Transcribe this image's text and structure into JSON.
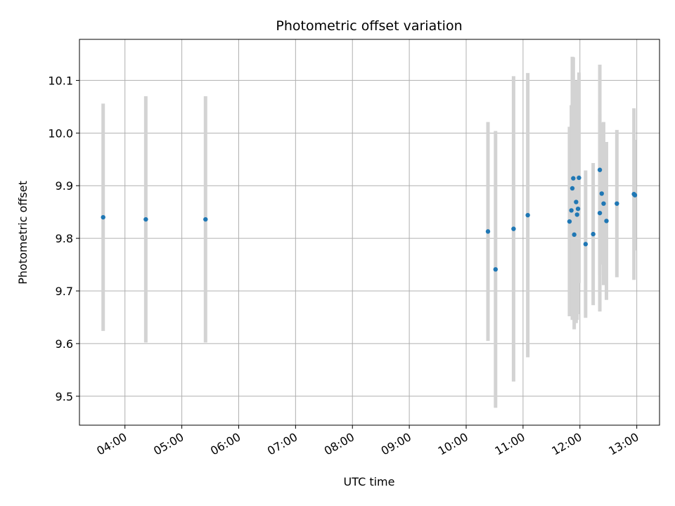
{
  "chart_data": {
    "type": "scatter",
    "title": "Photometric offset variation",
    "xlabel": "UTC time",
    "ylabel": "Photometric offset",
    "x_tick_labels": [
      "04:00",
      "05:00",
      "06:00",
      "07:00",
      "08:00",
      "09:00",
      "10:00",
      "11:00",
      "12:00",
      "13:00"
    ],
    "x_ticks": [
      "04:00",
      "05:00",
      "06:00",
      "07:00",
      "08:00",
      "09:00",
      "10:00",
      "11:00",
      "12:00",
      "13:00"
    ],
    "xlim": [
      "03:12",
      "13:24"
    ],
    "y_ticks": [
      9.5,
      9.6,
      9.7,
      9.8,
      9.9,
      10.0,
      10.1
    ],
    "ylim": [
      9.445,
      10.178
    ],
    "grid": true,
    "marker_color": "#1f77b4",
    "errorbar_color": "#d3d3d3",
    "points": [
      {
        "x": "03:37",
        "y": 9.84,
        "err": 0.216
      },
      {
        "x": "04:22",
        "y": 9.836,
        "err": 0.234
      },
      {
        "x": "05:25",
        "y": 9.836,
        "err": 0.234
      },
      {
        "x": "10:23",
        "y": 9.813,
        "err": 0.208
      },
      {
        "x": "10:31",
        "y": 9.741,
        "err": 0.263
      },
      {
        "x": "10:50",
        "y": 9.818,
        "err": 0.29
      },
      {
        "x": "11:05",
        "y": 9.844,
        "err": 0.27
      },
      {
        "x": "11:49",
        "y": 9.832,
        "err": 0.18
      },
      {
        "x": "11:51",
        "y": 9.853,
        "err": 0.2
      },
      {
        "x": "11:52",
        "y": 9.895,
        "err": 0.25
      },
      {
        "x": "11:53",
        "y": 9.914,
        "err": 0.23
      },
      {
        "x": "11:54",
        "y": 9.807,
        "err": 0.18
      },
      {
        "x": "11:56",
        "y": 9.869,
        "err": 0.23
      },
      {
        "x": "11:57",
        "y": 9.845,
        "err": 0.2
      },
      {
        "x": "11:58",
        "y": 9.856,
        "err": 0.2
      },
      {
        "x": "11:59",
        "y": 9.915,
        "err": 0.2
      },
      {
        "x": "12:06",
        "y": 9.789,
        "err": 0.14
      },
      {
        "x": "12:14",
        "y": 9.808,
        "err": 0.135
      },
      {
        "x": "12:21",
        "y": 9.93,
        "err": 0.2
      },
      {
        "x": "12:21",
        "y": 9.848,
        "err": 0.187
      },
      {
        "x": "12:23",
        "y": 9.885,
        "err": 0.135
      },
      {
        "x": "12:25",
        "y": 9.866,
        "err": 0.155
      },
      {
        "x": "12:28",
        "y": 9.833,
        "err": 0.15
      },
      {
        "x": "12:39",
        "y": 9.866,
        "err": 0.14
      },
      {
        "x": "12:57",
        "y": 9.884,
        "err": 0.163
      },
      {
        "x": "12:58",
        "y": 9.882,
        "err": 0.105
      }
    ]
  }
}
